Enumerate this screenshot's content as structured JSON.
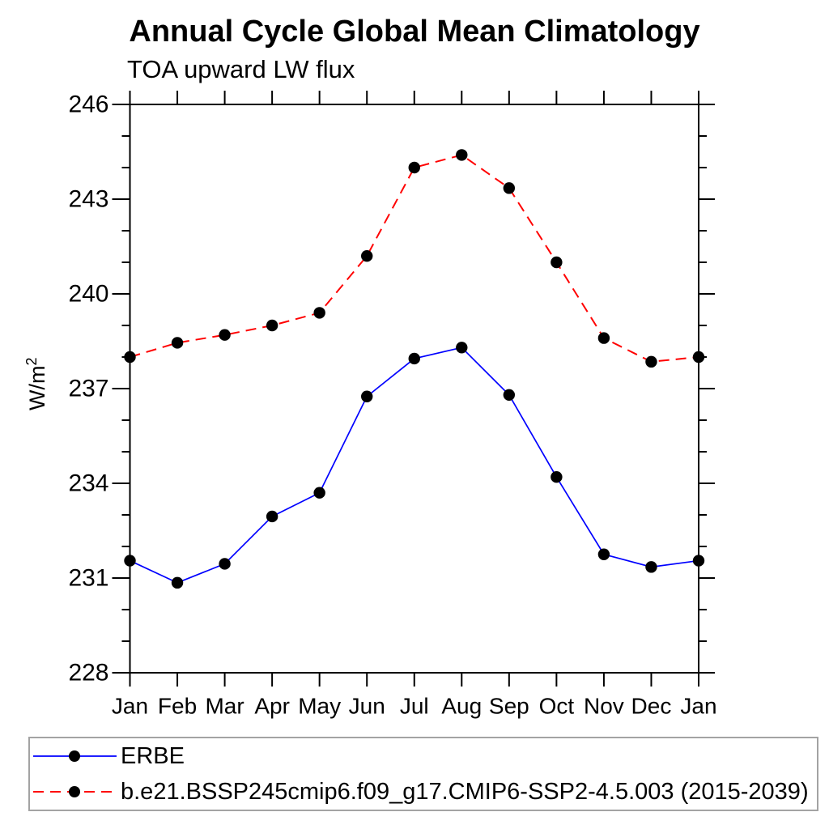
{
  "title": "Annual Cycle Global Mean Climatology",
  "subtitle": "TOA upward LW flux",
  "ylabel": {
    "base": "W/m",
    "exponent": "2"
  },
  "chart_data": {
    "type": "line",
    "categories": [
      "Jan",
      "Feb",
      "Mar",
      "Apr",
      "May",
      "Jun",
      "Jul",
      "Aug",
      "Sep",
      "Oct",
      "Nov",
      "Dec",
      "Jan"
    ],
    "xlabel": "",
    "ylabel": "W/m^2",
    "ylim": [
      228,
      246
    ],
    "yticks": [
      246,
      243,
      240,
      237,
      234,
      231,
      228
    ],
    "yminor_step": 1,
    "grid": false,
    "legend_position": "bottom-left-box",
    "series": [
      {
        "name": "ERBE",
        "color": "#0000ff",
        "line_style": "solid",
        "marker": "filled-circle",
        "marker_color": "#000000",
        "values": [
          231.55,
          230.85,
          231.45,
          232.95,
          233.7,
          236.75,
          237.95,
          238.3,
          236.8,
          234.2,
          231.75,
          231.35,
          231.55
        ]
      },
      {
        "name": "b.e21.BSSP245cmip6.f09_g17.CMIP6-SSP2-4.5.003 (2015-2039)",
        "color": "#ff0000",
        "line_style": "dashed",
        "marker": "filled-circle",
        "marker_color": "#000000",
        "values": [
          238.0,
          238.45,
          238.7,
          239.0,
          239.4,
          241.2,
          244.0,
          244.4,
          243.35,
          241.0,
          238.6,
          237.85,
          238.0
        ]
      }
    ]
  },
  "colors": {
    "background": "#ffffff",
    "axis": "#000000",
    "text": "#000000",
    "erbe_line": "#0000ff",
    "model_line": "#ff0000",
    "marker": "#000000",
    "legend_border": "#a3a3a3"
  }
}
